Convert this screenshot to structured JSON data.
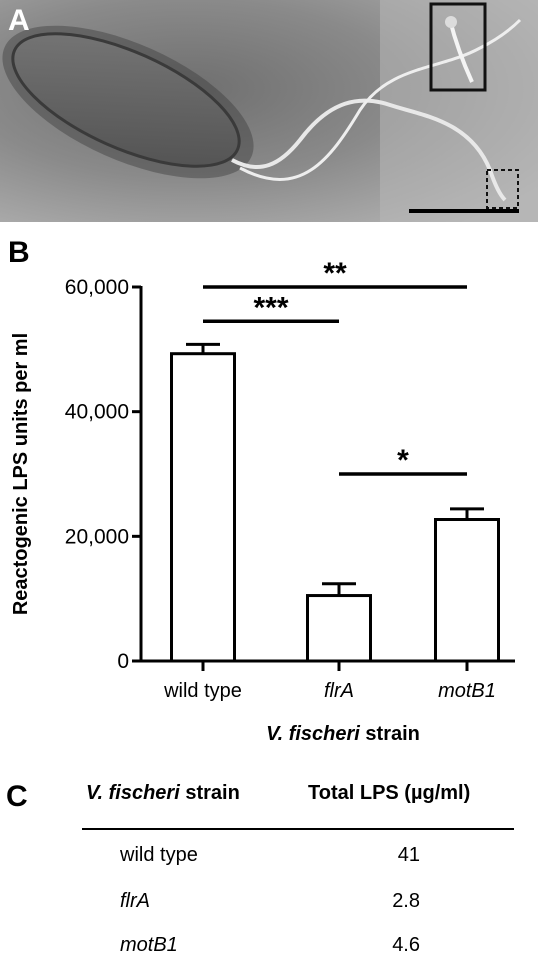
{
  "panels": {
    "a": "A",
    "b": "B",
    "c": "C"
  },
  "micrograph": {
    "description_icon": "bacterium-micrograph-icon"
  },
  "chart_data": {
    "type": "bar",
    "categories": [
      "wild type",
      "flrA",
      "motB1"
    ],
    "category_italic": [
      false,
      true,
      true
    ],
    "values": [
      49300,
      10500,
      22700
    ],
    "errors": [
      1500,
      1900,
      1700
    ],
    "ylabel": "Reactogenic LPS units per ml",
    "xlabel_italic": "V. fischeri",
    "xlabel_rest": " strain",
    "ylim": [
      0,
      60000
    ],
    "yticks": [
      0,
      20000,
      40000,
      60000
    ],
    "ytick_labels": [
      "0",
      "20,000",
      "40,000",
      "60,000"
    ],
    "significance": [
      {
        "from": 0,
        "to": 2,
        "label": "**",
        "y": 60000
      },
      {
        "from": 0,
        "to": 1,
        "label": "***",
        "y": 54500
      },
      {
        "from": 1,
        "to": 2,
        "label": "*",
        "y": 30000
      }
    ],
    "grid": false,
    "legend": "none"
  },
  "table": {
    "headers": {
      "strain_italic": "V. fischeri",
      "strain_rest": " strain",
      "total": "Total LPS (µg/ml)"
    },
    "rows": [
      {
        "strain": "wild type",
        "italic": false,
        "value": "41"
      },
      {
        "strain": "flrA",
        "italic": true,
        "value": "2.8"
      },
      {
        "strain": "motB1",
        "italic": true,
        "value": "4.6"
      }
    ]
  },
  "colors": {
    "axis": "#000000",
    "bar_fill": "#ffffff",
    "micrograph_bg": "#8f8f8f"
  }
}
